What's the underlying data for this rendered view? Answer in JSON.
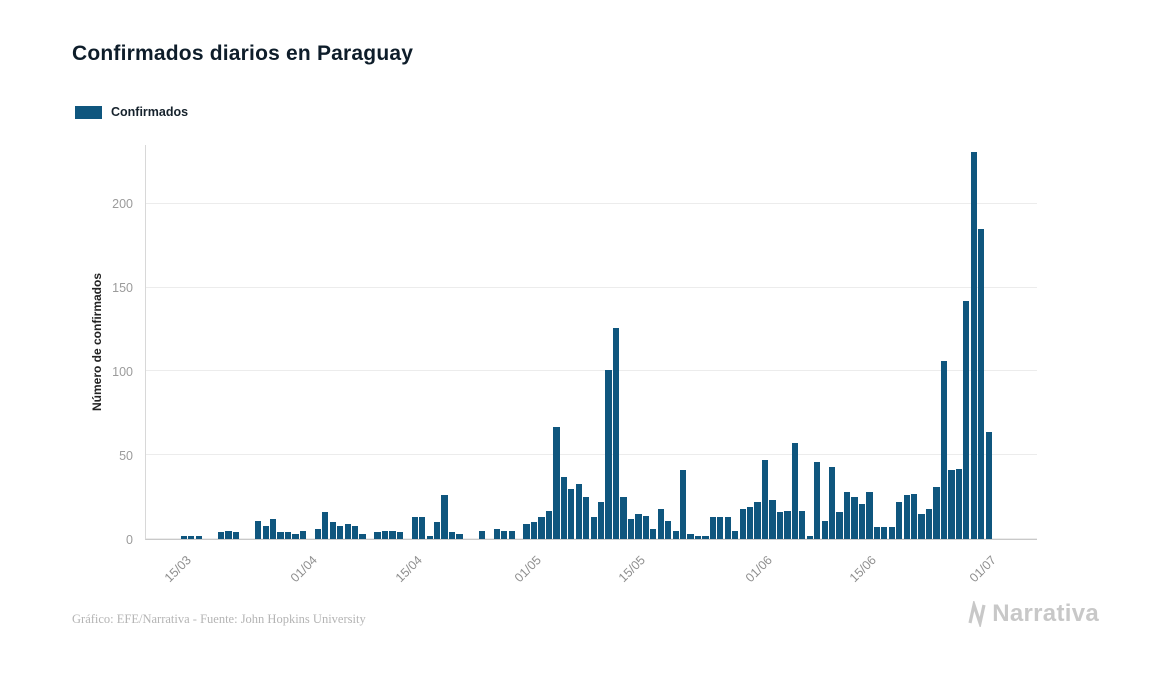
{
  "title": "Confirmados diarios en Paraguay",
  "legend": {
    "label": "Confirmados",
    "color": "#0f567e"
  },
  "y_axis": {
    "label": "Número de confirmados",
    "ticks": [
      0,
      50,
      100,
      150,
      200
    ]
  },
  "x_axis": {
    "ticks": [
      "15/03",
      "01/04",
      "15/04",
      "01/05",
      "15/05",
      "01/06",
      "15/06",
      "01/07"
    ]
  },
  "footer": {
    "credit": "Gráfico: EFE/Narrativa - Fuente: John Hopkins University",
    "brand": "Narrativa"
  },
  "chart_data": {
    "type": "bar",
    "title": "Confirmados diarios en Paraguay",
    "xlabel": "",
    "ylabel": "Número de confirmados",
    "ylim": [
      0,
      235
    ],
    "grid": "horizontal",
    "legend_position": "top-left",
    "series_name": "Confirmados",
    "bar_color": "#0f567e",
    "x": [
      "15/03",
      "16/03",
      "17/03",
      "18/03",
      "19/03",
      "20/03",
      "21/03",
      "22/03",
      "23/03",
      "24/03",
      "25/03",
      "26/03",
      "27/03",
      "28/03",
      "29/03",
      "30/03",
      "31/03",
      "01/04",
      "02/04",
      "03/04",
      "04/04",
      "05/04",
      "06/04",
      "07/04",
      "08/04",
      "09/04",
      "10/04",
      "11/04",
      "12/04",
      "13/04",
      "14/04",
      "15/04",
      "16/04",
      "17/04",
      "18/04",
      "19/04",
      "20/04",
      "21/04",
      "22/04",
      "23/04",
      "24/04",
      "25/04",
      "26/04",
      "27/04",
      "28/04",
      "29/04",
      "30/04",
      "01/05",
      "02/05",
      "03/05",
      "04/05",
      "05/05",
      "06/05",
      "07/05",
      "08/05",
      "09/05",
      "10/05",
      "11/05",
      "12/05",
      "13/05",
      "14/05",
      "15/05",
      "16/05",
      "17/05",
      "18/05",
      "19/05",
      "20/05",
      "21/05",
      "22/05",
      "23/05",
      "24/05",
      "25/05",
      "26/05",
      "27/05",
      "28/05",
      "29/05",
      "30/05",
      "31/05",
      "01/06",
      "02/06",
      "03/06",
      "04/06",
      "05/06",
      "06/06",
      "07/06",
      "08/06",
      "09/06",
      "10/06",
      "11/06",
      "12/06",
      "13/06",
      "14/06",
      "15/06",
      "16/06",
      "17/06",
      "18/06",
      "19/06",
      "20/06",
      "21/06",
      "22/06",
      "23/06",
      "24/06",
      "25/06",
      "26/06",
      "27/06",
      "28/06",
      "29/06",
      "30/06",
      "01/07"
    ],
    "values": [
      2,
      2,
      2,
      0,
      0,
      4,
      5,
      4,
      0,
      0,
      11,
      8,
      12,
      4,
      4,
      3,
      5,
      0,
      6,
      16,
      10,
      8,
      9,
      8,
      3,
      0,
      4,
      5,
      5,
      4,
      0,
      13,
      13,
      2,
      10,
      26,
      4,
      3,
      0,
      0,
      5,
      0,
      6,
      5,
      5,
      0,
      9,
      10,
      13,
      17,
      67,
      37,
      30,
      33,
      25,
      13,
      22,
      101,
      126,
      25,
      12,
      15,
      14,
      6,
      18,
      11,
      5,
      41,
      3,
      2,
      2,
      13,
      13,
      13,
      5,
      18,
      19,
      22,
      47,
      23,
      16,
      17,
      57,
      17,
      2,
      46,
      11,
      43,
      16,
      28,
      25,
      21,
      28,
      7,
      7,
      7,
      22,
      26,
      27,
      15,
      18,
      31,
      106,
      41,
      42,
      142,
      231,
      185,
      64
    ]
  }
}
